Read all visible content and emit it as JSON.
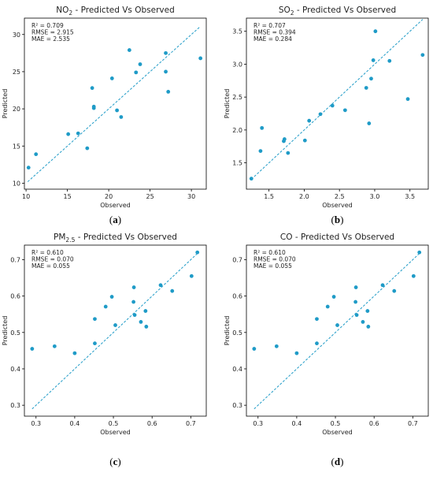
{
  "chart_data": [
    {
      "type": "scatter",
      "title_main": "NO",
      "title_sub": "2",
      "title_rest": " - Predicted Vs Observed",
      "xlabel": "Observed",
      "ylabel": "Predicted",
      "xlim": [
        9.8,
        31.8
      ],
      "ylim": [
        9.2,
        32.2
      ],
      "xticks": [
        10,
        15,
        20,
        25,
        30
      ],
      "yticks": [
        10,
        15,
        20,
        25,
        30
      ],
      "tick_format": "int",
      "stats": [
        "R² = 0.709",
        "RMSE = 2.915",
        "MAE = 2.535"
      ],
      "points": [
        {
          "x": 10.3,
          "y": 12.1
        },
        {
          "x": 11.2,
          "y": 13.9
        },
        {
          "x": 15.1,
          "y": 16.6
        },
        {
          "x": 16.3,
          "y": 16.7
        },
        {
          "x": 17.4,
          "y": 14.7
        },
        {
          "x": 18.0,
          "y": 22.8
        },
        {
          "x": 18.2,
          "y": 20.3
        },
        {
          "x": 18.2,
          "y": 20.1
        },
        {
          "x": 20.4,
          "y": 24.1
        },
        {
          "x": 21.0,
          "y": 19.8
        },
        {
          "x": 21.5,
          "y": 18.9
        },
        {
          "x": 22.5,
          "y": 27.9
        },
        {
          "x": 23.3,
          "y": 24.9
        },
        {
          "x": 23.8,
          "y": 26.0
        },
        {
          "x": 26.9,
          "y": 27.5
        },
        {
          "x": 26.9,
          "y": 25.0
        },
        {
          "x": 27.2,
          "y": 22.3
        },
        {
          "x": 31.1,
          "y": 26.8
        }
      ],
      "identity_line": [
        10.2,
        31.0
      ],
      "color": "#1f9bc7",
      "caption": "a"
    },
    {
      "type": "scatter",
      "title_main": "SO",
      "title_sub": "2",
      "title_rest": " - Predicted Vs Observed",
      "xlabel": "Observed",
      "ylabel": "Predicted",
      "xlim": [
        1.18,
        3.76
      ],
      "ylim": [
        1.1,
        3.7
      ],
      "xticks": [
        1.5,
        2.0,
        2.5,
        3.0,
        3.5
      ],
      "yticks": [
        1.5,
        2.0,
        2.5,
        3.0,
        3.5
      ],
      "tick_format": "1",
      "stats": [
        "R² = 0.707",
        "RMSE = 0.394",
        "MAE = 0.284"
      ],
      "points": [
        {
          "x": 1.25,
          "y": 1.26
        },
        {
          "x": 1.38,
          "y": 1.68
        },
        {
          "x": 1.4,
          "y": 2.03
        },
        {
          "x": 1.71,
          "y": 1.83
        },
        {
          "x": 1.72,
          "y": 1.86
        },
        {
          "x": 1.77,
          "y": 1.65
        },
        {
          "x": 2.01,
          "y": 1.84
        },
        {
          "x": 2.07,
          "y": 2.14
        },
        {
          "x": 2.23,
          "y": 2.24
        },
        {
          "x": 2.4,
          "y": 2.37
        },
        {
          "x": 2.58,
          "y": 2.3
        },
        {
          "x": 2.88,
          "y": 2.64
        },
        {
          "x": 2.92,
          "y": 2.1
        },
        {
          "x": 2.95,
          "y": 2.78
        },
        {
          "x": 2.98,
          "y": 3.06
        },
        {
          "x": 3.01,
          "y": 3.5
        },
        {
          "x": 3.21,
          "y": 3.05
        },
        {
          "x": 3.47,
          "y": 2.47
        },
        {
          "x": 3.68,
          "y": 3.14
        }
      ],
      "identity_line": [
        1.25,
        3.68
      ],
      "color": "#1f9bc7",
      "caption": "b"
    },
    {
      "type": "scatter",
      "title_main": "PM",
      "title_sub": "2.5",
      "title_rest": " - Predicted Vs Observed",
      "xlabel": "Observed",
      "ylabel": "Predicted",
      "xlim": [
        0.27,
        0.74
      ],
      "ylim": [
        0.27,
        0.74
      ],
      "xticks": [
        0.3,
        0.4,
        0.5,
        0.6,
        0.7
      ],
      "yticks": [
        0.3,
        0.4,
        0.5,
        0.6,
        0.7
      ],
      "tick_format": "1",
      "stats": [
        "R² = 0.610",
        "RMSE = 0.070",
        "MAE = 0.055"
      ],
      "points": [
        {
          "x": 0.29,
          "y": 0.455
        },
        {
          "x": 0.348,
          "y": 0.462
        },
        {
          "x": 0.4,
          "y": 0.443
        },
        {
          "x": 0.452,
          "y": 0.537
        },
        {
          "x": 0.452,
          "y": 0.47
        },
        {
          "x": 0.48,
          "y": 0.571
        },
        {
          "x": 0.496,
          "y": 0.598
        },
        {
          "x": 0.505,
          "y": 0.52
        },
        {
          "x": 0.553,
          "y": 0.624
        },
        {
          "x": 0.552,
          "y": 0.584
        },
        {
          "x": 0.555,
          "y": 0.548
        },
        {
          "x": 0.571,
          "y": 0.529
        },
        {
          "x": 0.583,
          "y": 0.559
        },
        {
          "x": 0.585,
          "y": 0.516
        },
        {
          "x": 0.622,
          "y": 0.63
        },
        {
          "x": 0.652,
          "y": 0.614
        },
        {
          "x": 0.702,
          "y": 0.655
        },
        {
          "x": 0.717,
          "y": 0.72
        }
      ],
      "identity_line": [
        0.29,
        0.717
      ],
      "color": "#1f9bc7",
      "caption": "c"
    },
    {
      "type": "scatter",
      "title_main": "CO",
      "title_sub": "",
      "title_rest": " - Predicted Vs Observed",
      "xlabel": "Observed",
      "ylabel": "Predicted",
      "xlim": [
        0.27,
        0.74
      ],
      "ylim": [
        0.27,
        0.74
      ],
      "xticks": [
        0.3,
        0.4,
        0.5,
        0.6,
        0.7
      ],
      "yticks": [
        0.3,
        0.4,
        0.5,
        0.6,
        0.7
      ],
      "tick_format": "1",
      "stats": [
        "R² = 0.610",
        "RMSE = 0.070",
        "MAE = 0.055"
      ],
      "points": [
        {
          "x": 0.29,
          "y": 0.455
        },
        {
          "x": 0.348,
          "y": 0.462
        },
        {
          "x": 0.4,
          "y": 0.443
        },
        {
          "x": 0.452,
          "y": 0.537
        },
        {
          "x": 0.452,
          "y": 0.47
        },
        {
          "x": 0.48,
          "y": 0.571
        },
        {
          "x": 0.496,
          "y": 0.598
        },
        {
          "x": 0.505,
          "y": 0.52
        },
        {
          "x": 0.553,
          "y": 0.624
        },
        {
          "x": 0.552,
          "y": 0.584
        },
        {
          "x": 0.555,
          "y": 0.548
        },
        {
          "x": 0.571,
          "y": 0.529
        },
        {
          "x": 0.583,
          "y": 0.559
        },
        {
          "x": 0.585,
          "y": 0.516
        },
        {
          "x": 0.622,
          "y": 0.63
        },
        {
          "x": 0.652,
          "y": 0.614
        },
        {
          "x": 0.702,
          "y": 0.655
        },
        {
          "x": 0.717,
          "y": 0.72
        }
      ],
      "identity_line": [
        0.29,
        0.717
      ],
      "color": "#1f9bc7",
      "caption": "d"
    }
  ]
}
